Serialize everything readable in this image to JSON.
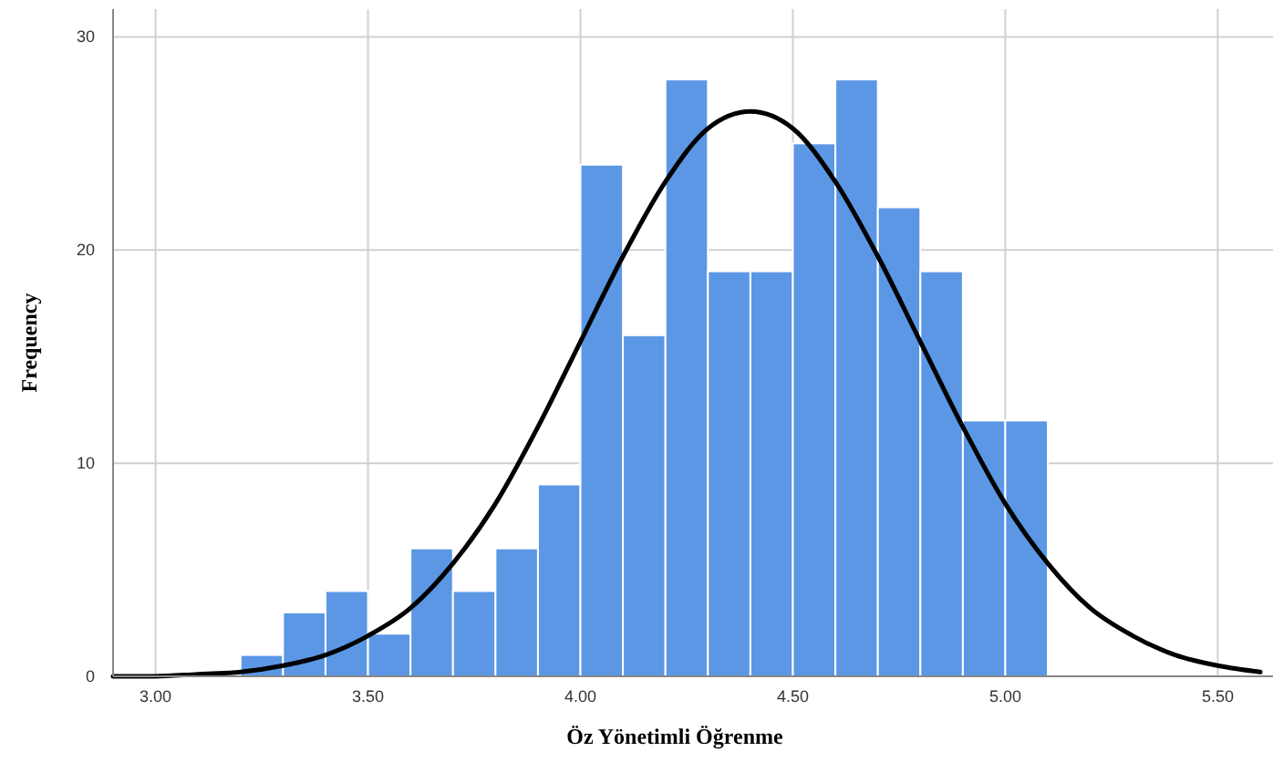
{
  "chart_data": {
    "type": "histogram",
    "xlabel": "Öz Yönetimli Öğrenme",
    "ylabel": "Frequency",
    "bins": [
      3.2,
      3.3,
      3.4,
      3.5,
      3.6,
      3.7,
      3.8,
      3.9,
      4.0,
      4.1,
      4.2,
      4.3,
      4.4,
      4.5,
      4.6,
      4.7,
      4.8,
      4.9,
      5.0,
      5.1
    ],
    "values": [
      1,
      3,
      4,
      2,
      6,
      4,
      6,
      9,
      24,
      16,
      28,
      19,
      19,
      25,
      28,
      22,
      19,
      12,
      12
    ],
    "color": "#5b97e5",
    "series": [
      {
        "type": "line",
        "color": "#000000",
        "x": [
          2.9,
          3.0,
          3.1,
          3.2,
          3.3,
          3.4,
          3.5,
          3.6,
          3.7,
          3.8,
          3.9,
          4.0,
          4.1,
          4.2,
          4.3,
          4.4,
          4.5,
          4.6,
          4.7,
          4.8,
          4.9,
          5.0,
          5.1,
          5.2,
          5.3,
          5.4,
          5.5,
          5.6
        ],
        "values": [
          0.0,
          0.0,
          0.1,
          0.2,
          0.5,
          1.0,
          1.9,
          3.2,
          5.3,
          8.1,
          11.7,
          15.7,
          19.7,
          23.2,
          25.7,
          26.5,
          25.7,
          23.2,
          19.7,
          15.7,
          11.7,
          8.1,
          5.3,
          3.2,
          1.9,
          1.0,
          0.5,
          0.2
        ]
      }
    ],
    "xlim": [
      2.9,
      5.63
    ],
    "ylim": [
      0,
      31.3
    ],
    "xticks": [
      {
        "value": 3,
        "label": "3.00"
      },
      {
        "value": 3.5,
        "label": "3.50"
      },
      {
        "value": 4,
        "label": "4.00"
      },
      {
        "value": 4.5,
        "label": "4.50"
      },
      {
        "value": 5,
        "label": "5.00"
      },
      {
        "value": 5.5,
        "label": "5.50"
      }
    ],
    "yticks": [
      0,
      10,
      20,
      30
    ],
    "grid": true,
    "line_style": "solid"
  }
}
